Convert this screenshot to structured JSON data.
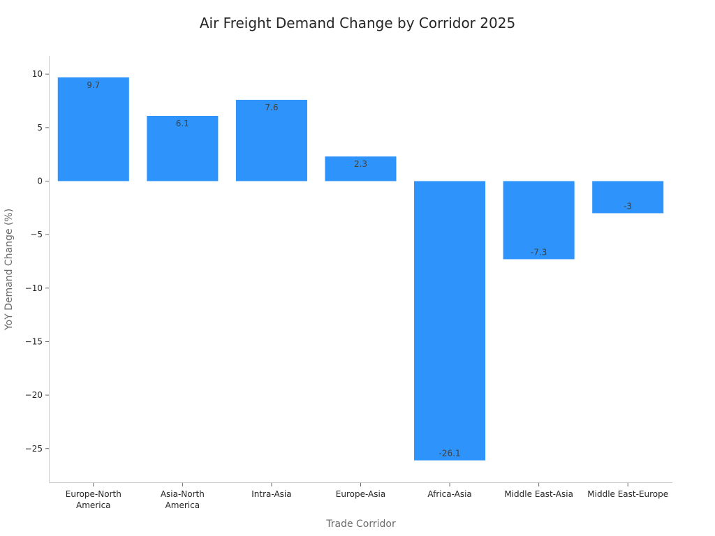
{
  "chart_data": {
    "type": "bar",
    "title": "Air Freight Demand Change by Corridor 2025",
    "xlabel": "Trade Corridor",
    "ylabel": "YoY Demand Change (%)",
    "categories": [
      [
        "Europe-North",
        "America"
      ],
      [
        "Asia-North",
        "America"
      ],
      [
        "Intra-Asia"
      ],
      [
        "Europe-Asia"
      ],
      [
        "Africa-Asia"
      ],
      [
        "Middle East-Asia"
      ],
      [
        "Middle East-Europe"
      ]
    ],
    "values": [
      9.7,
      6.1,
      7.6,
      2.3,
      -26.1,
      -7.3,
      -3
    ],
    "value_labels": [
      "9.7",
      "6.1",
      "7.6",
      "2.3",
      "-26.1",
      "-7.3",
      "-3"
    ],
    "ylim": [
      -28,
      11.6
    ],
    "yticks": [
      10,
      5,
      0,
      -5,
      -10,
      -15,
      -20,
      -25
    ],
    "ytick_labels": [
      "10",
      "5",
      "0",
      "−5",
      "−10",
      "−15",
      "−20",
      "−25"
    ],
    "bar_color": "#2e93fa",
    "grid": false,
    "legend": "none"
  }
}
